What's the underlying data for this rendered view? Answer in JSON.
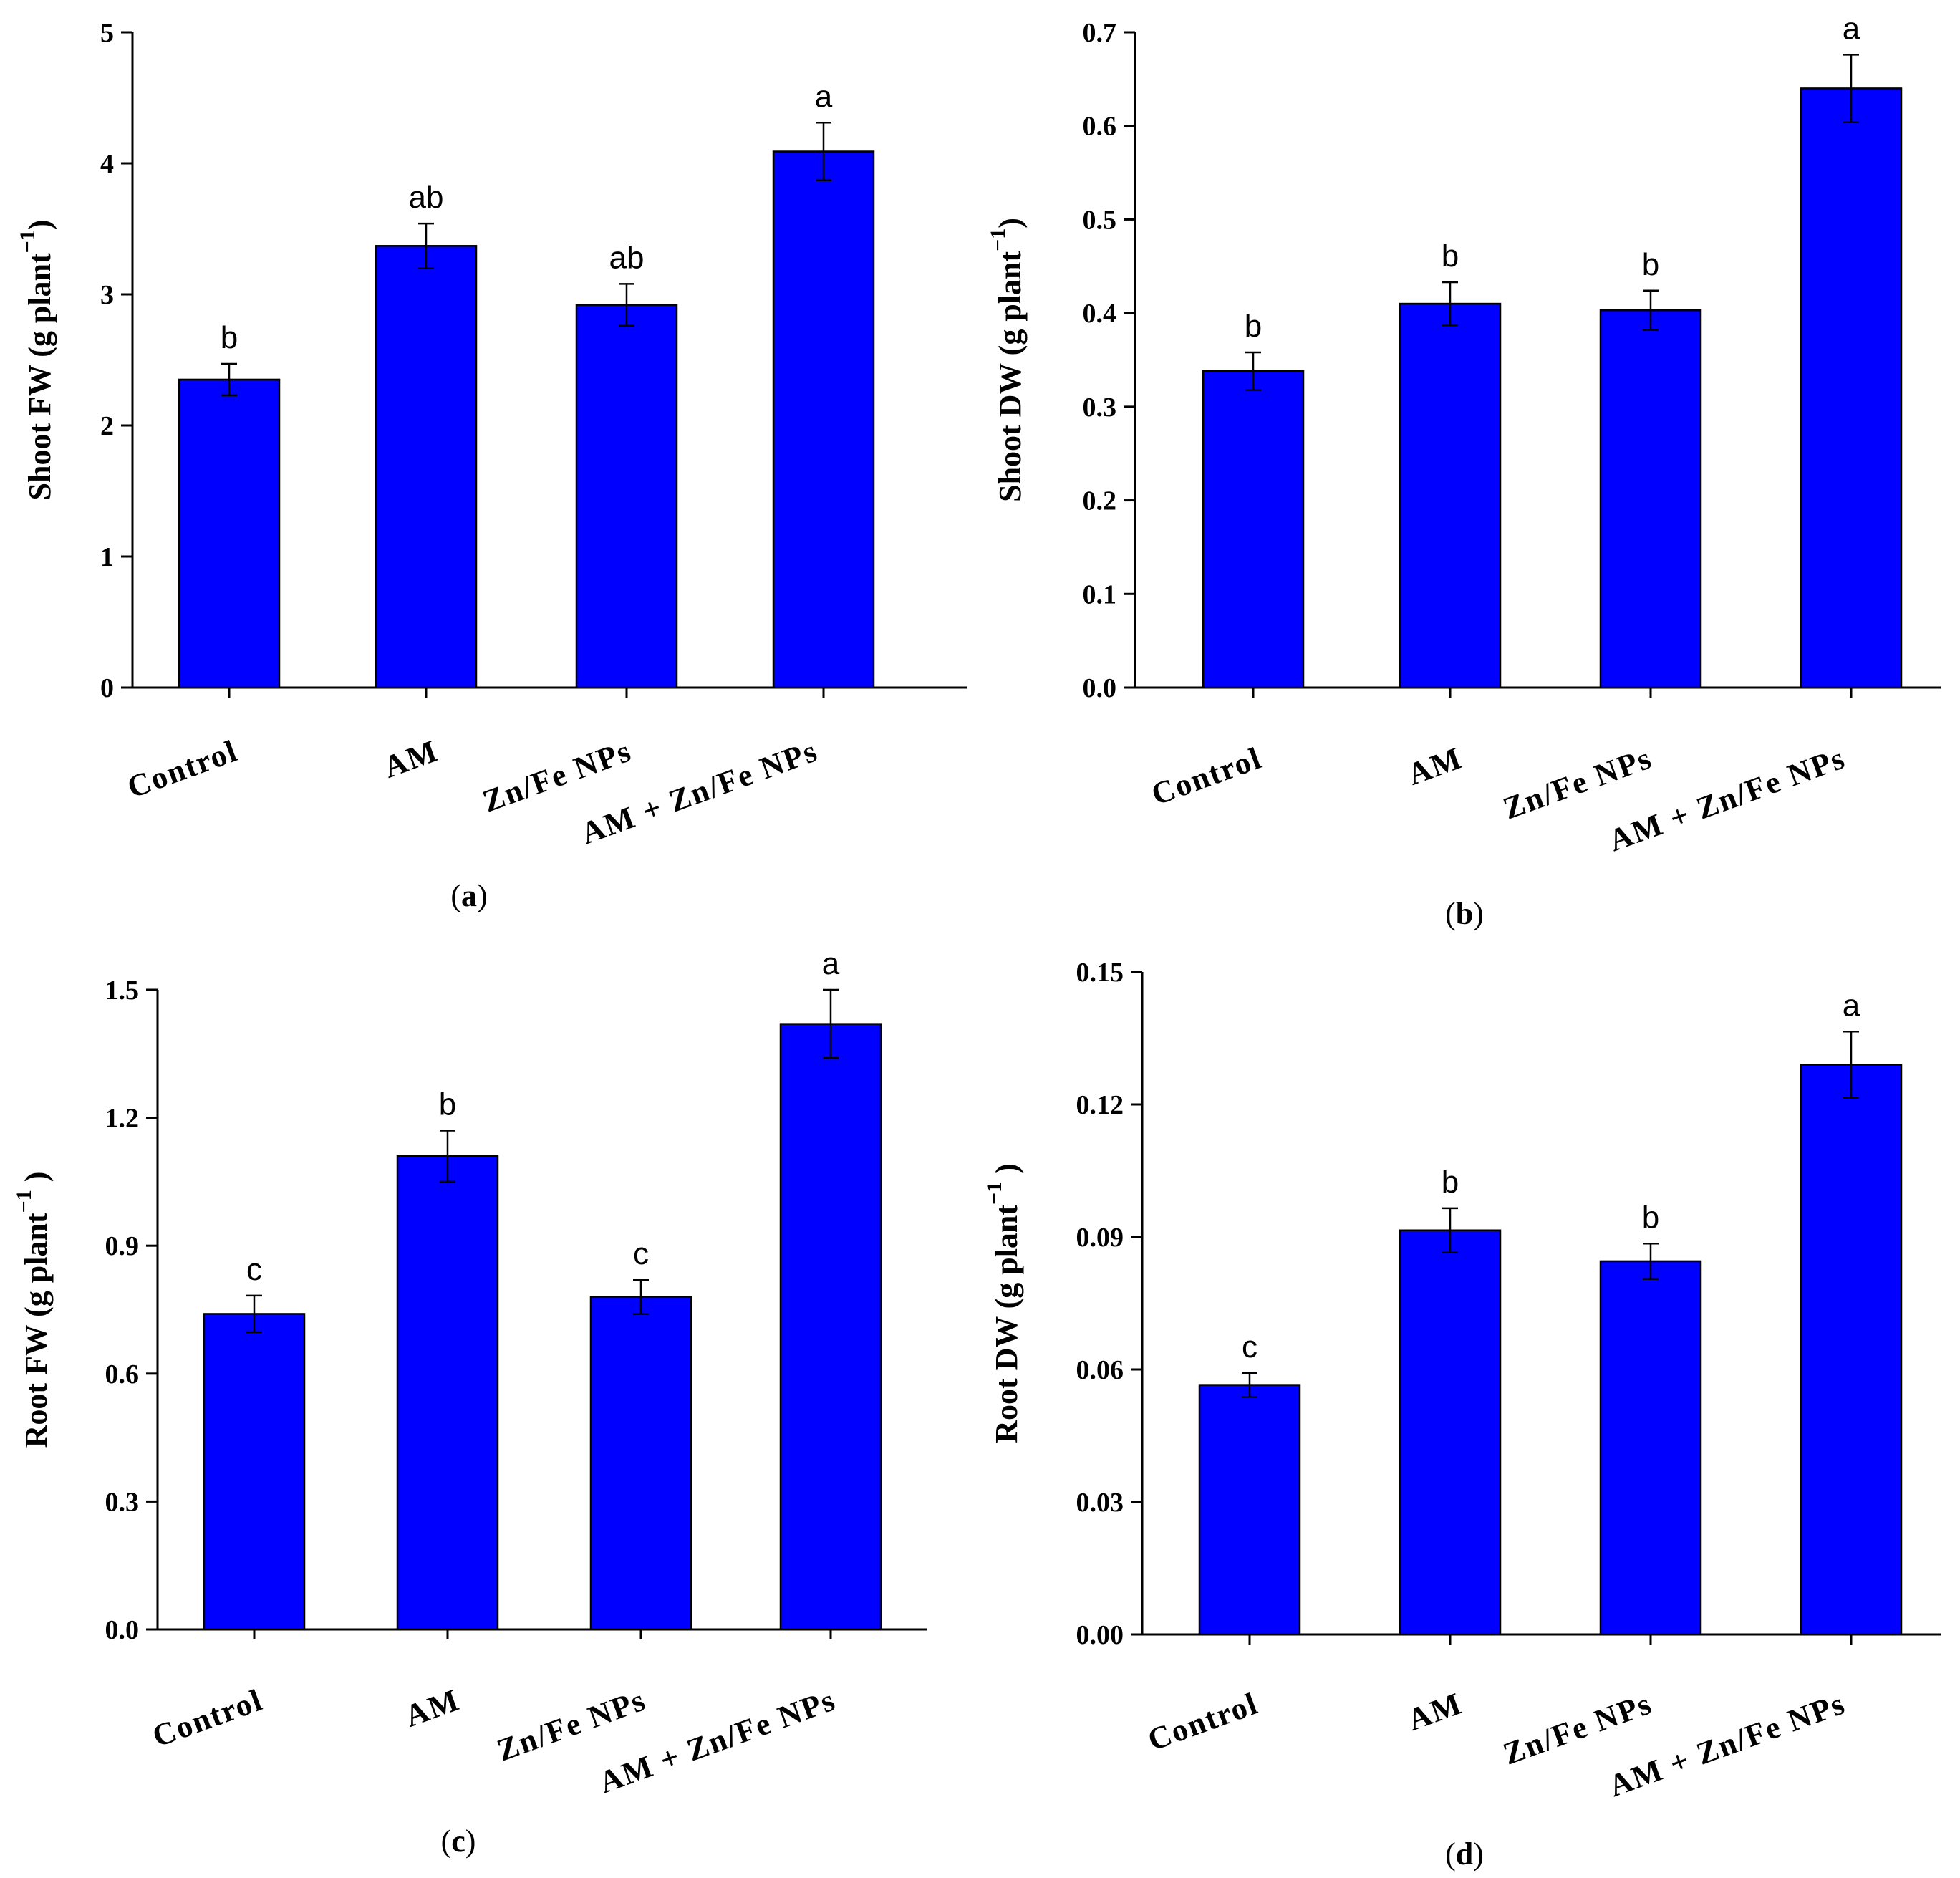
{
  "chart_data": [
    {
      "type": "bar",
      "panel": "a",
      "ylabel": "Shoot FW (g plant",
      "ylabel_sup": "−1",
      "ylabel_close": ")",
      "categories": [
        "Control",
        "AM",
        "Zn/Fe NPs",
        "AM + Zn/Fe NPs"
      ],
      "values": [
        2.35,
        3.37,
        2.92,
        4.09
      ],
      "errors": [
        0.12,
        0.17,
        0.16,
        0.22
      ],
      "letters": [
        "b",
        "ab",
        "ab",
        "a"
      ],
      "ylim": [
        0,
        5
      ],
      "yticks": [
        "0",
        "1",
        "2",
        "3",
        "4",
        "5"
      ],
      "ytick_values": [
        0,
        1,
        2,
        3,
        4,
        5
      ],
      "bar_color": "#0000ff"
    },
    {
      "type": "bar",
      "panel": "b",
      "ylabel": "Shoot DW (g plant",
      "ylabel_sup": "−1",
      "ylabel_close": ")",
      "categories": [
        "Control",
        "AM",
        "Zn/Fe NPs",
        "AM + Zn/Fe NPs"
      ],
      "values": [
        0.338,
        0.41,
        0.403,
        0.64
      ],
      "errors": [
        0.02,
        0.023,
        0.021,
        0.036
      ],
      "letters": [
        "b",
        "b",
        "b",
        "a"
      ],
      "ylim": [
        0,
        0.7
      ],
      "yticks": [
        "0.0",
        "0.1",
        "0.2",
        "0.3",
        "0.4",
        "0.5",
        "0.6",
        "0.7"
      ],
      "ytick_values": [
        0,
        0.1,
        0.2,
        0.3,
        0.4,
        0.5,
        0.6,
        0.7
      ],
      "bar_color": "#0000ff"
    },
    {
      "type": "bar",
      "panel": "c",
      "ylabel": "Root FW (g plant",
      "ylabel_sup": "−1",
      "ylabel_close": " )",
      "categories": [
        "Control",
        "AM",
        "Zn/Fe NPs",
        "AM + Zn/Fe NPs"
      ],
      "values": [
        0.74,
        1.11,
        0.78,
        1.42
      ],
      "errors": [
        0.043,
        0.06,
        0.04,
        0.08
      ],
      "letters": [
        "c",
        "b",
        "c",
        "a"
      ],
      "ylim": [
        0,
        1.5
      ],
      "yticks": [
        "0.0",
        "0.3",
        "0.6",
        "0.9",
        "1.2",
        "1.5"
      ],
      "ytick_values": [
        0,
        0.3,
        0.6,
        0.9,
        1.2,
        1.5
      ],
      "bar_color": "#0000ff"
    },
    {
      "type": "bar",
      "panel": "d",
      "ylabel": "Root DW (g plant",
      "ylabel_sup": "−1",
      "ylabel_close": " )",
      "categories": [
        "Control",
        "AM",
        "Zn/Fe NPs",
        "AM + Zn/Fe NPs"
      ],
      "values": [
        0.0565,
        0.0915,
        0.0845,
        0.129
      ],
      "errors": [
        0.0027,
        0.005,
        0.004,
        0.0075
      ],
      "letters": [
        "c",
        "b",
        "b",
        "a"
      ],
      "ylim": [
        0,
        0.15
      ],
      "yticks": [
        "0.00",
        "0.03",
        "0.06",
        "0.09",
        "0.12",
        "0.15"
      ],
      "ytick_values": [
        0,
        0.03,
        0.06,
        0.09,
        0.12,
        0.15
      ],
      "bar_color": "#0000ff"
    }
  ]
}
